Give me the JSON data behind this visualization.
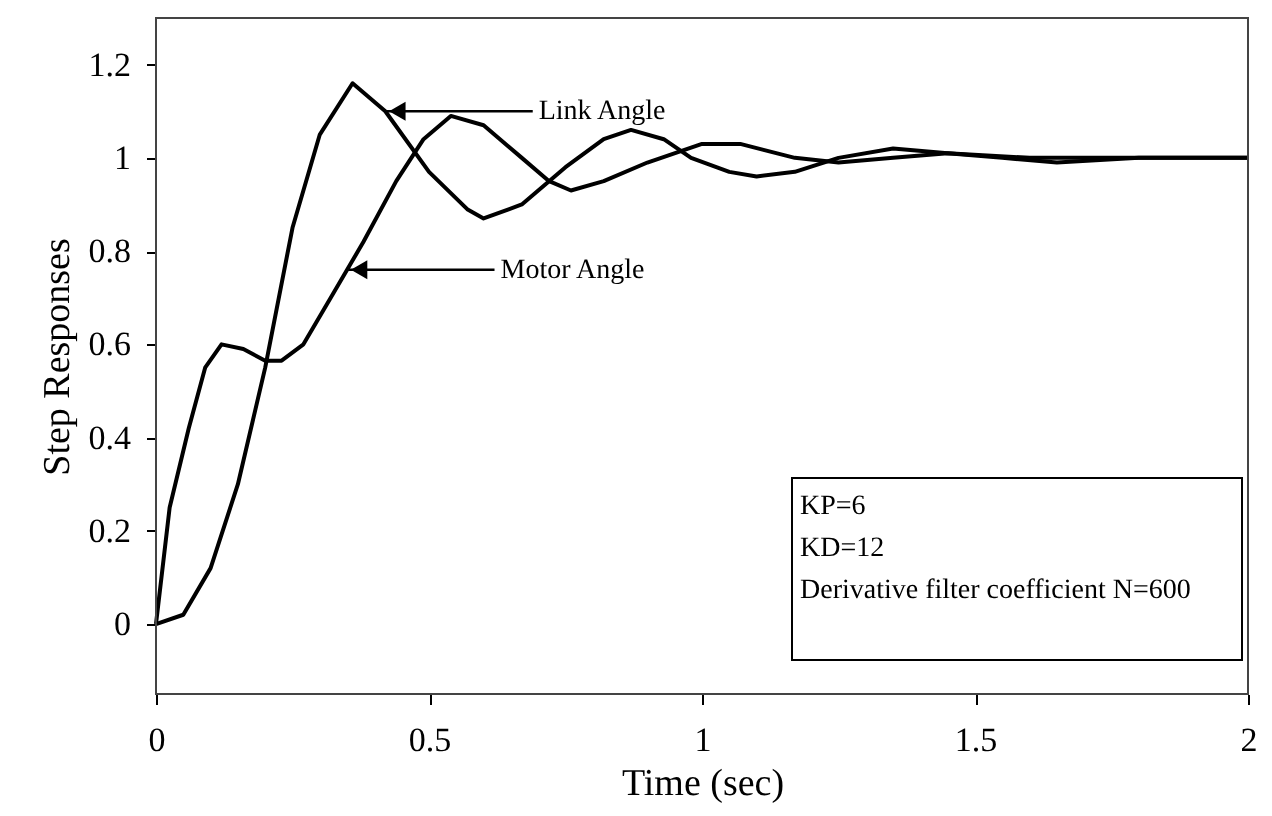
{
  "chart_data": {
    "type": "line",
    "xlabel": "Time (sec)",
    "ylabel": "Step Responses",
    "xlim": [
      0,
      2
    ],
    "ylim": [
      -0.15,
      1.3
    ],
    "xticks": [
      0,
      0.5,
      1,
      1.5,
      2
    ],
    "yticks": [
      0,
      0.2,
      0.4,
      0.6,
      0.8,
      1,
      1.2
    ],
    "grid": false,
    "line_style": "solid",
    "marker": "none",
    "series": [
      {
        "color": "#000000",
        "x": [
          0,
          0.05,
          0.1,
          0.15,
          0.2,
          0.25,
          0.3,
          0.36,
          0.42,
          0.5,
          0.57,
          0.6,
          0.67,
          0.75,
          0.82,
          0.87,
          0.93,
          0.98,
          1.05,
          1.1,
          1.17,
          1.25,
          1.35,
          1.45,
          1.55,
          1.65,
          1.8,
          2
        ],
        "values": [
          0,
          0.02,
          0.12,
          0.3,
          0.55,
          0.85,
          1.05,
          1.16,
          1.1,
          0.97,
          0.89,
          0.87,
          0.9,
          0.98,
          1.04,
          1.06,
          1.04,
          1.0,
          0.97,
          0.96,
          0.97,
          1.0,
          1.02,
          1.01,
          1.0,
          0.99,
          1.0,
          1.0
        ]
      },
      {
        "color": "#000000",
        "x": [
          0,
          0.025,
          0.06,
          0.09,
          0.12,
          0.16,
          0.2,
          0.23,
          0.27,
          0.32,
          0.38,
          0.44,
          0.49,
          0.54,
          0.6,
          0.67,
          0.72,
          0.76,
          0.82,
          0.9,
          1.0,
          1.07,
          1.17,
          1.25,
          1.35,
          1.45,
          1.6,
          2
        ],
        "values": [
          0,
          0.25,
          0.42,
          0.55,
          0.6,
          0.59,
          0.565,
          0.565,
          0.6,
          0.7,
          0.82,
          0.95,
          1.04,
          1.09,
          1.07,
          1.0,
          0.95,
          0.93,
          0.95,
          0.99,
          1.03,
          1.03,
          1.0,
          0.99,
          1.0,
          1.01,
          1.0,
          1.0
        ]
      }
    ],
    "annotations": [
      {
        "text": "Link Angle",
        "x": 0.42,
        "y": 1.1
      },
      {
        "text": "Motor Angle",
        "x": 0.35,
        "y": 0.76
      },
      "KP=6",
      "KD=12",
      "Derivative filter coefficient N=600"
    ]
  }
}
